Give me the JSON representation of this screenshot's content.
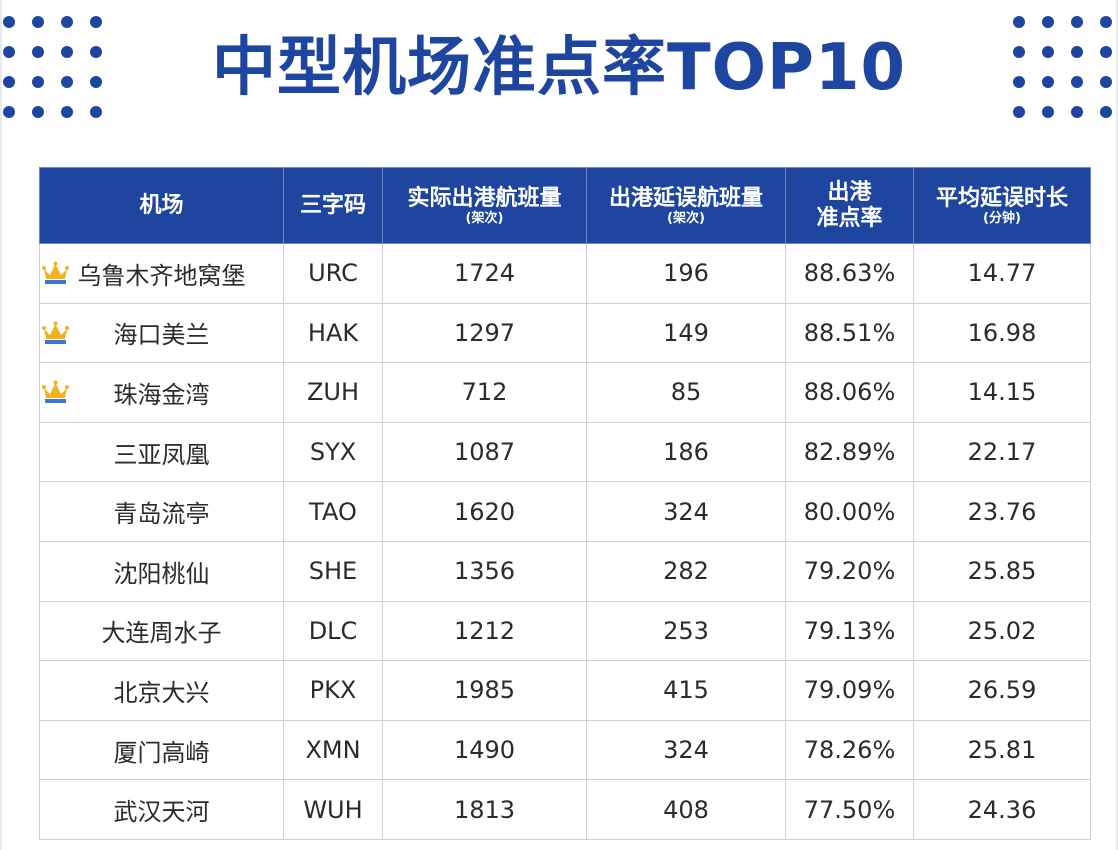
{
  "colors": {
    "brand": "#1e46a0",
    "crown_gold": "#f5b21e",
    "crown_blue": "#3a78d0"
  },
  "title": "中型机场准点率TOP10",
  "chart_data": {
    "type": "table",
    "columns": [
      {
        "label": "机场",
        "sub": ""
      },
      {
        "label": "三字码",
        "sub": ""
      },
      {
        "label": "实际出港航班量",
        "sub": "(架次)"
      },
      {
        "label": "出港延误航班量",
        "sub": "(架次)"
      },
      {
        "label": "出港",
        "sub": "准点率"
      },
      {
        "label": "平均延误时长",
        "sub": "(分钟)"
      }
    ],
    "rows": [
      {
        "airport": "乌鲁木齐地窝堡",
        "code": "URC",
        "actual": "1724",
        "delayed": "196",
        "rate": "88.63%",
        "avg": "14.77",
        "crown": true
      },
      {
        "airport": "海口美兰",
        "code": "HAK",
        "actual": "1297",
        "delayed": "149",
        "rate": "88.51%",
        "avg": "16.98",
        "crown": true
      },
      {
        "airport": "珠海金湾",
        "code": "ZUH",
        "actual": "712",
        "delayed": "85",
        "rate": "88.06%",
        "avg": "14.15",
        "crown": true
      },
      {
        "airport": "三亚凤凰",
        "code": "SYX",
        "actual": "1087",
        "delayed": "186",
        "rate": "82.89%",
        "avg": "22.17",
        "crown": false
      },
      {
        "airport": "青岛流亭",
        "code": "TAO",
        "actual": "1620",
        "delayed": "324",
        "rate": "80.00%",
        "avg": "23.76",
        "crown": false
      },
      {
        "airport": "沈阳桃仙",
        "code": "SHE",
        "actual": "1356",
        "delayed": "282",
        "rate": "79.20%",
        "avg": "25.85",
        "crown": false
      },
      {
        "airport": "大连周水子",
        "code": "DLC",
        "actual": "1212",
        "delayed": "253",
        "rate": "79.13%",
        "avg": "25.02",
        "crown": false
      },
      {
        "airport": "北京大兴",
        "code": "PKX",
        "actual": "1985",
        "delayed": "415",
        "rate": "79.09%",
        "avg": "26.59",
        "crown": false
      },
      {
        "airport": "厦门高崎",
        "code": "XMN",
        "actual": "1490",
        "delayed": "324",
        "rate": "78.26%",
        "avg": "25.81",
        "crown": false
      },
      {
        "airport": "武汉天河",
        "code": "WUH",
        "actual": "1813",
        "delayed": "408",
        "rate": "77.50%",
        "avg": "24.36",
        "crown": false
      }
    ]
  }
}
